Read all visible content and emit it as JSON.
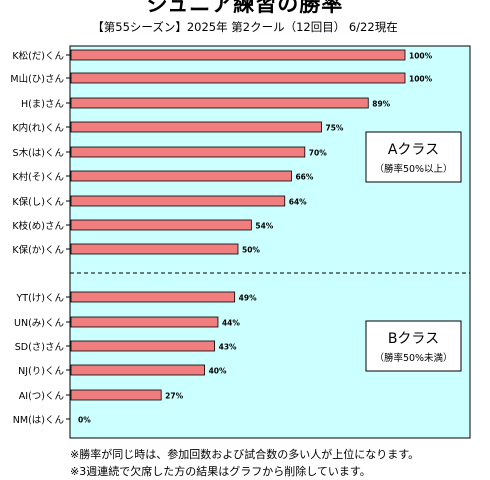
{
  "chart_data": {
    "type": "bar",
    "orientation": "horizontal",
    "title": "ジュニア練習の勝率",
    "subtitle": "【第55シーズン】2025年 第2クール（12回目） 6/22現在",
    "categories": [
      "K松(だ)くん",
      "M山(ひ)さん",
      "H(ま)さん",
      "K内(れ)くん",
      "S木(は)くん",
      "K村(そ)くん",
      "K保(し)くん",
      "K枝(め)さん",
      "K保(か)くん",
      "YT(け)くん",
      "UN(み)くん",
      "SD(さ)さん",
      "NJ(り)くん",
      "AI(つ)くん",
      "NM(は)くん"
    ],
    "values": [
      100,
      100,
      89,
      75,
      70,
      66,
      64,
      54,
      50,
      49,
      44,
      43,
      40,
      27,
      0
    ],
    "value_labels": [
      "100%",
      "100%",
      "89%",
      "75%",
      "70%",
      "66%",
      "64%",
      "54%",
      "50%",
      "49%",
      "44%",
      "43%",
      "40%",
      "27%",
      "0%"
    ],
    "xlim": [
      0,
      100
    ],
    "groups": [
      {
        "name": "Aクラス",
        "note": "（勝率50%以上）",
        "count": 9
      },
      {
        "name": "Bクラス",
        "note": "（勝率50%未満）",
        "count": 6
      }
    ],
    "colors": {
      "bar": "#f07e7e",
      "plot_bg": "#ccffff"
    }
  },
  "notes": [
    "※勝率が同じ時は、参加回数および試合数の多い人が上位になります。",
    "※3週連続で欠席した方の結果はグラフから削除しています。"
  ]
}
